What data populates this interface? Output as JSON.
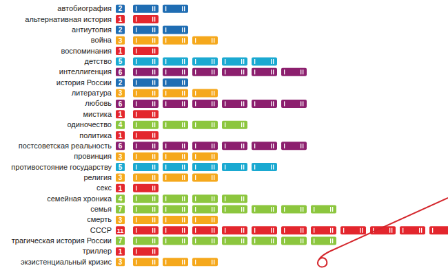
{
  "chart_data": {
    "type": "pictogram",
    "orientation": "horizontal",
    "data_labels": true,
    "tick_labels": "y",
    "categories": [
      "автобиография",
      "альтернативная история",
      "антиутопия",
      "война",
      "воспоминания",
      "детство",
      "интеллигенция",
      "история России",
      "литература",
      "любовь",
      "мистика",
      "одиночество",
      "политика",
      "постсоветская реальность",
      "провинция",
      "противостояние государству",
      "религия",
      "секс",
      "семейная хроника",
      "семья",
      "смерть",
      "СССР",
      "трагическая история России",
      "триллер",
      "экзистенциальный кризис"
    ],
    "values": [
      2,
      1,
      2,
      3,
      1,
      5,
      6,
      2,
      3,
      6,
      1,
      4,
      1,
      6,
      3,
      5,
      3,
      1,
      4,
      7,
      3,
      11,
      7,
      1,
      3
    ],
    "colors": [
      "#1f6db3",
      "#e3262d",
      "#1f6db3",
      "#f5a81c",
      "#e3262d",
      "#1aa9d1",
      "#8c1f6e",
      "#1f6db3",
      "#f5a81c",
      "#8c1f6e",
      "#e3262d",
      "#8cc63e",
      "#e3262d",
      "#8c1f6e",
      "#f5a81c",
      "#1aa9d1",
      "#f5a81c",
      "#e3262d",
      "#8cc63e",
      "#8cc63e",
      "#f5a81c",
      "#e3262d",
      "#8cc63e",
      "#e3262d",
      "#f5a81c"
    ]
  }
}
